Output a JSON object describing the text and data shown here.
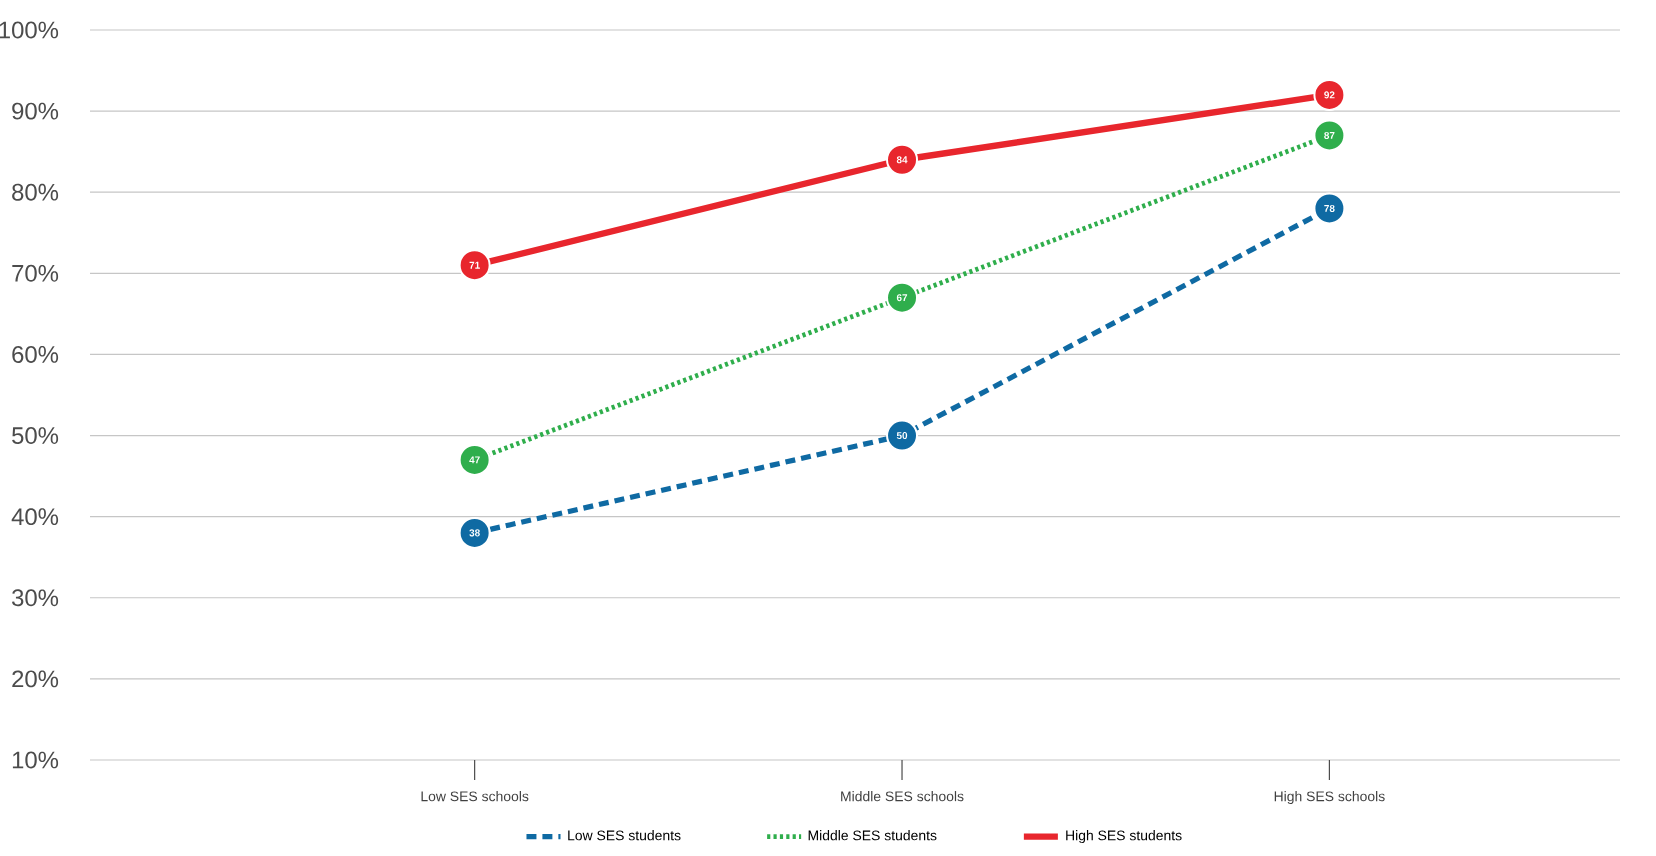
{
  "chart_data": {
    "type": "line",
    "categories": [
      "Low SES schools",
      "Middle SES schools",
      "High SES schools"
    ],
    "series": [
      {
        "name": "Low SES students",
        "color": "#0f6aa3",
        "values": [
          38,
          50,
          78
        ],
        "line_style": "dashed"
      },
      {
        "name": "Middle SES students",
        "color": "#2fae4c",
        "values": [
          47,
          67,
          87
        ],
        "line_style": "dotted"
      },
      {
        "name": "High SES students",
        "color": "#e8262d",
        "values": [
          71,
          84,
          92
        ],
        "line_style": "solid"
      }
    ],
    "ylim": [
      10,
      100
    ],
    "yticks": [
      {
        "value": 10,
        "label": "10%"
      },
      {
        "value": 20,
        "label": "20%"
      },
      {
        "value": 30,
        "label": "30%"
      },
      {
        "value": 40,
        "label": "40%"
      },
      {
        "value": 50,
        "label": "50%"
      },
      {
        "value": 60,
        "label": "60%"
      },
      {
        "value": 70,
        "label": "70%"
      },
      {
        "value": 80,
        "label": "80%"
      },
      {
        "value": 90,
        "label": "90%"
      },
      {
        "value": 100,
        "label": "100%"
      }
    ],
    "grid": "y",
    "legend": "bottom",
    "marker": "circle",
    "data_labels": true
  }
}
